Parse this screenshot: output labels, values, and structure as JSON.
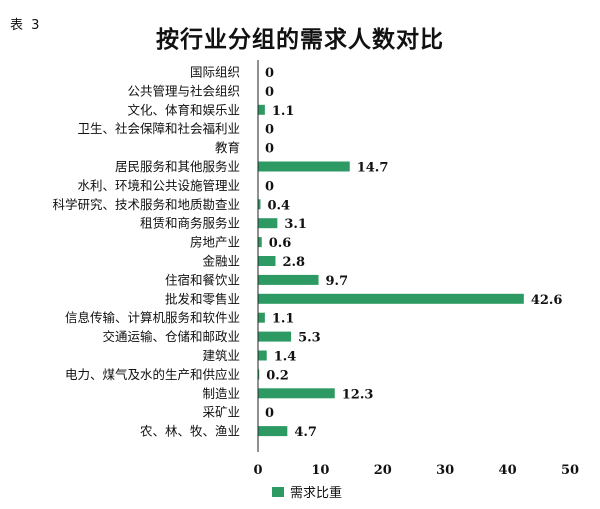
{
  "figure_label": "表 3",
  "chart_data": {
    "type": "bar",
    "orientation": "horizontal",
    "title": "按行业分组的需求人数对比",
    "xlabel": "",
    "ylabel": "",
    "xlim": [
      0,
      50
    ],
    "ticks": [
      "0",
      "10",
      "20",
      "30",
      "40",
      "50"
    ],
    "grid": false,
    "legend_position": "bottom",
    "bar_color": "#2e9a63",
    "categories": [
      "国际组织",
      "公共管理与社会组织",
      "文化、体育和娱乐业",
      "卫生、社会保障和社会福利业",
      "教育",
      "居民服务和其他服务业",
      "水利、环境和公共设施管理业",
      "科学研究、技术服务和地质勘查业",
      "租赁和商务服务业",
      "房地产业",
      "金融业",
      "住宿和餐饮业",
      "批发和零售业",
      "信息传输、计算机服务和软件业",
      "交通运输、仓储和邮政业",
      "建筑业",
      "电力、煤气及水的生产和供应业",
      "制造业",
      "采矿业",
      "农、林、牧、渔业"
    ],
    "series": [
      {
        "name": "需求比重",
        "values": [
          0,
          0,
          1.1,
          0,
          0,
          14.7,
          0,
          0.4,
          3.1,
          0.6,
          2.8,
          9.7,
          42.6,
          1.1,
          5.3,
          1.4,
          0.2,
          12.3,
          0,
          4.7
        ],
        "labels": [
          "0",
          "0",
          "1.1",
          "0",
          "0",
          "14.7",
          "0",
          "0.4",
          "3.1",
          "0.6",
          "2.8",
          "9.7",
          "42.6",
          "1.1",
          "5.3",
          "1.4",
          "0.2",
          "12.3",
          "0",
          "4.7"
        ]
      }
    ]
  }
}
